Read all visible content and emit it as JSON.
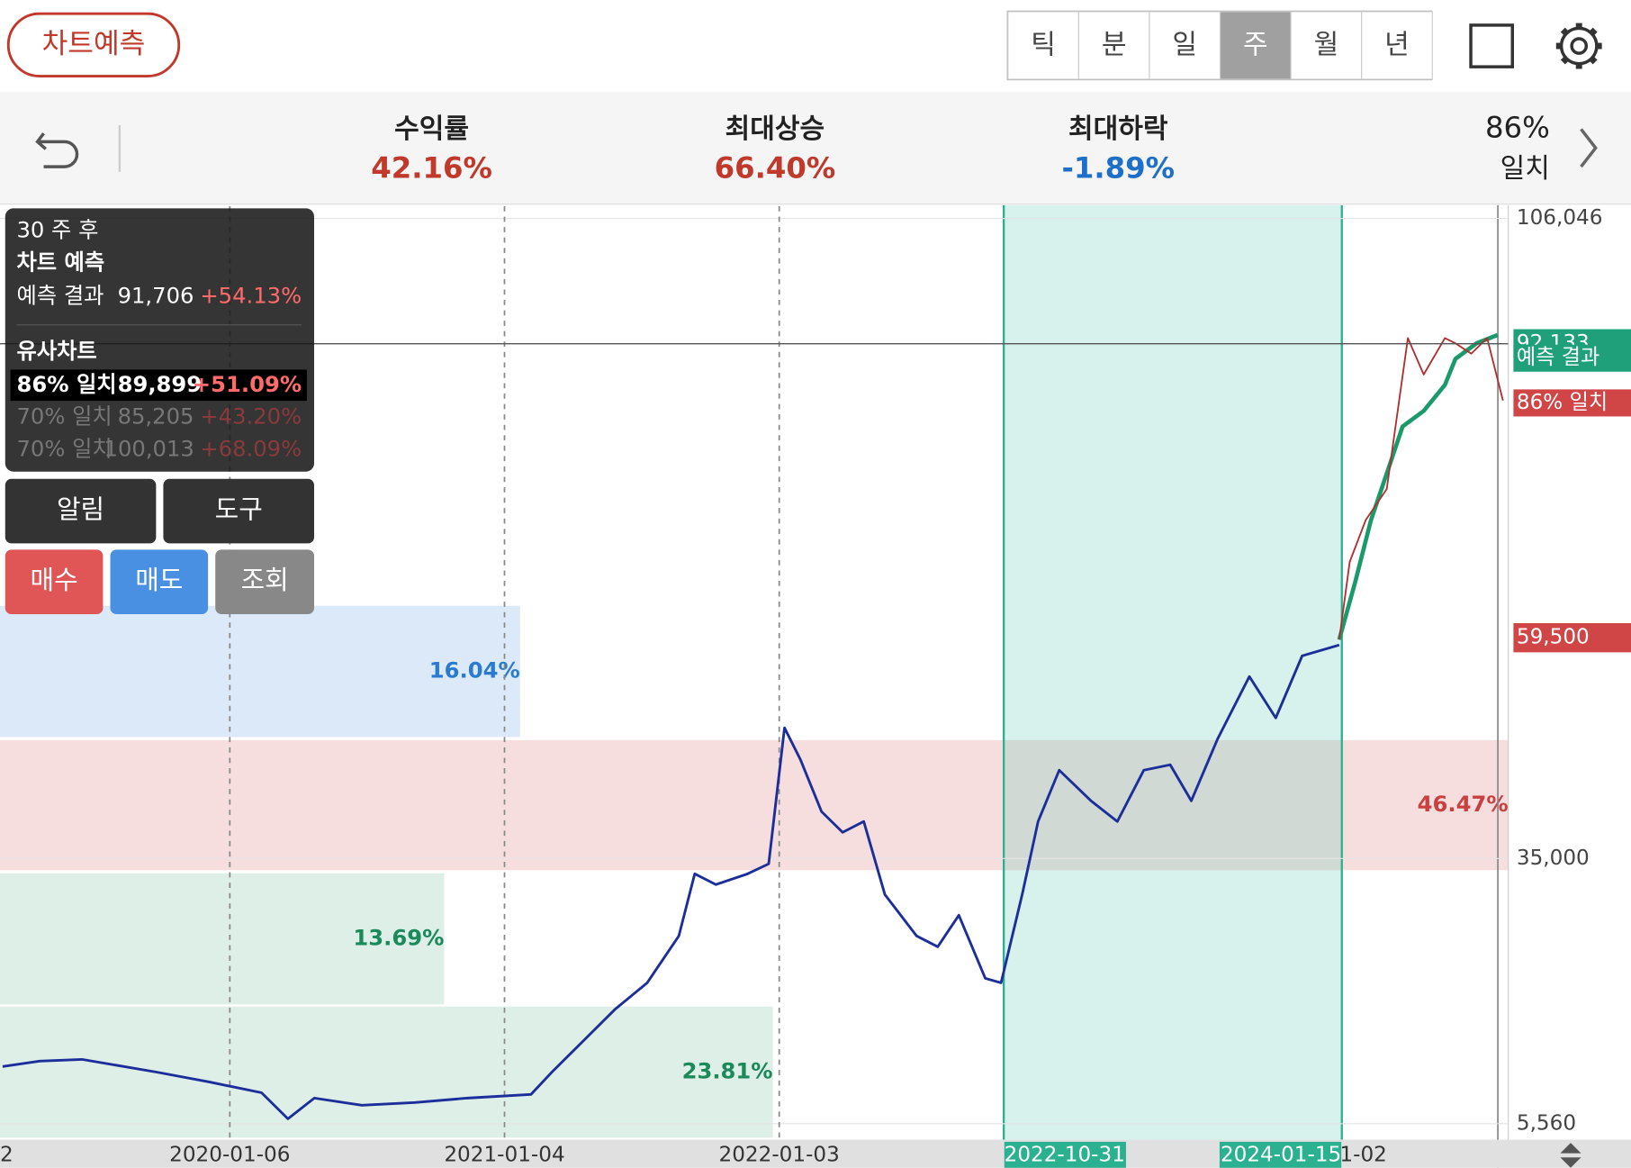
{
  "header": {
    "predict_button": "차트예측",
    "periods": [
      "틱",
      "분",
      "일",
      "주",
      "월",
      "년"
    ],
    "selected_period": 3
  },
  "stats": [
    {
      "label": "수익률",
      "value": "42.16%",
      "color": "#c0392b"
    },
    {
      "label": "최대상승",
      "value": "66.40%",
      "color": "#c0392b"
    },
    {
      "label": "최대하락",
      "value": "-1.89%",
      "color": "#1e6fc8"
    }
  ],
  "match": {
    "value": "86%",
    "label": "일치"
  },
  "tooltip": {
    "period": "30 주 후",
    "title": "차트 예측",
    "result_label": "예측 결과",
    "result_value": "91,706",
    "result_pct": "+54.13%",
    "similar_title": "유사차트",
    "rows": [
      {
        "label": "86% 일치",
        "value": "89,899",
        "pct": "+51.09%"
      },
      {
        "label": "70% 일치",
        "value": "85,205",
        "pct": "+43.20%"
      },
      {
        "label": "70% 일치",
        "value": "100,013",
        "pct": "+68.09%"
      }
    ]
  },
  "buttons": [
    "알림",
    "도구",
    "매수",
    "매도",
    "조회"
  ],
  "zones": [
    "16.04%",
    "46.47%",
    "13.69%",
    "23.81%"
  ],
  "chart_data": {
    "type": "line",
    "xlim": [
      -43.5,
      242
    ],
    "ylim": [
      3780,
      107400
    ],
    "xticks": [
      {
        "value": 0,
        "label": "2020-01-06"
      },
      {
        "value": 52,
        "label": "2021-01-04"
      },
      {
        "value": 104,
        "label": "2022-01-03"
      },
      {
        "value": 147,
        "label": "2022-10-31",
        "highlight": true
      },
      {
        "value": 210,
        "label": "2024-01-15",
        "highlight": true
      }
    ],
    "edge_labels": [
      "2",
      "1-02"
    ],
    "yticks": [
      {
        "value": 5560,
        "label": "5,560"
      },
      {
        "value": 35000,
        "label": "35,000"
      },
      {
        "value": 106046,
        "label": "106,046"
      }
    ],
    "price_labels": [
      {
        "value": 92133,
        "label": "92,133",
        "color": "#1fa07a"
      },
      {
        "value": 59500,
        "label": "59,500",
        "color": "#d04545"
      }
    ],
    "series": [
      {
        "color": "#1c2e9a",
        "width": 2.5,
        "x": [
          -43,
          -36,
          -28,
          -14,
          -4,
          6,
          11,
          16,
          25,
          35,
          45,
          57,
          61,
          67,
          73,
          79,
          85,
          88,
          92,
          98,
          102,
          105,
          108,
          112,
          116,
          120,
          124,
          130,
          134,
          138,
          143,
          146,
          150,
          153,
          157,
          163,
          168,
          173,
          178,
          182,
          187,
          193,
          198,
          203,
          210
        ],
        "values": [
          11900,
          12500,
          12700,
          11300,
          10200,
          9000,
          6100,
          8400,
          7600,
          7900,
          8400,
          8800,
          11300,
          14800,
          18300,
          21200,
          26400,
          33300,
          32100,
          33300,
          34400,
          49500,
          46000,
          40200,
          37900,
          39100,
          31000,
          26400,
          25200,
          28700,
          21700,
          21200,
          31000,
          39100,
          44800,
          41400,
          39100,
          44800,
          45400,
          41400,
          48300,
          55200,
          50600,
          57500,
          58700
        ]
      },
      {
        "name": "예측 결과",
        "color": "#1a9a6a",
        "width": 4,
        "x": [
          210,
          213,
          216,
          220,
          222,
          226,
          230,
          232,
          236,
          240
        ],
        "values": [
          59300,
          65620,
          72550,
          79480,
          82945,
          84680,
          87565,
          90450,
          92185,
          93109
        ]
      },
      {
        "name": "86% 일치",
        "color": "#b03030",
        "width": 1.6,
        "x": [
          210,
          212,
          215,
          219,
          223,
          226,
          230,
          232,
          235,
          238,
          241
        ],
        "values": [
          59300,
          67930,
          72550,
          76015,
          92763,
          88720,
          92763,
          92185,
          91030,
          92763,
          85833
        ]
      }
    ]
  }
}
